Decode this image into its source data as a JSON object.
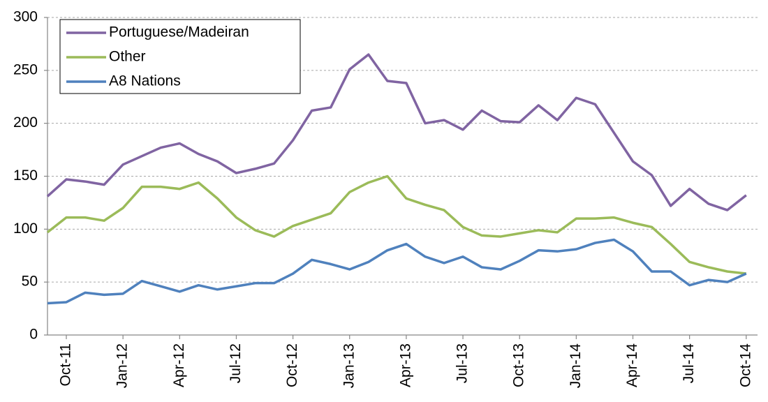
{
  "chart_data": {
    "type": "line",
    "categories": [
      null,
      "Oct-11",
      null,
      null,
      "Jan-12",
      null,
      null,
      "Apr-12",
      null,
      null,
      "Jul-12",
      null,
      null,
      "Oct-12",
      null,
      null,
      "Jan-13",
      null,
      null,
      "Apr-13",
      null,
      null,
      "Jul-13",
      null,
      null,
      "Oct-13",
      null,
      null,
      "Jan-14",
      null,
      null,
      "Apr-14",
      null,
      null,
      "Jul-14",
      null,
      null,
      "Oct-14"
    ],
    "series": [
      {
        "name": "Portuguese/Madeiran",
        "color": "#8064a2",
        "values": [
          131,
          147,
          145,
          142,
          161,
          169,
          177,
          181,
          171,
          164,
          153,
          157,
          162,
          184,
          212,
          215,
          251,
          265,
          240,
          238,
          200,
          203,
          194,
          212,
          202,
          201,
          217,
          203,
          224,
          218,
          191,
          164,
          151,
          122,
          138,
          124,
          118,
          132
        ]
      },
      {
        "name": "Other",
        "color": "#9bbb59",
        "values": [
          97,
          111,
          111,
          108,
          120,
          140,
          140,
          138,
          144,
          129,
          111,
          99,
          93,
          103,
          109,
          115,
          135,
          144,
          150,
          129,
          123,
          118,
          102,
          94,
          93,
          96,
          99,
          97,
          110,
          110,
          111,
          106,
          102,
          86,
          69,
          64,
          60,
          58
        ]
      },
      {
        "name": "A8 Nations",
        "color": "#4f81bd",
        "values": [
          30,
          31,
          40,
          38,
          39,
          51,
          46,
          41,
          47,
          43,
          46,
          49,
          49,
          58,
          71,
          67,
          62,
          69,
          80,
          86,
          74,
          68,
          74,
          64,
          62,
          70,
          80,
          79,
          81,
          87,
          90,
          79,
          60,
          60,
          47,
          52,
          50,
          58
        ]
      }
    ],
    "ylim": [
      0,
      300
    ],
    "yticks": [
      0,
      50,
      100,
      150,
      200,
      250,
      300
    ],
    "grid": true,
    "legend": "top-left"
  }
}
